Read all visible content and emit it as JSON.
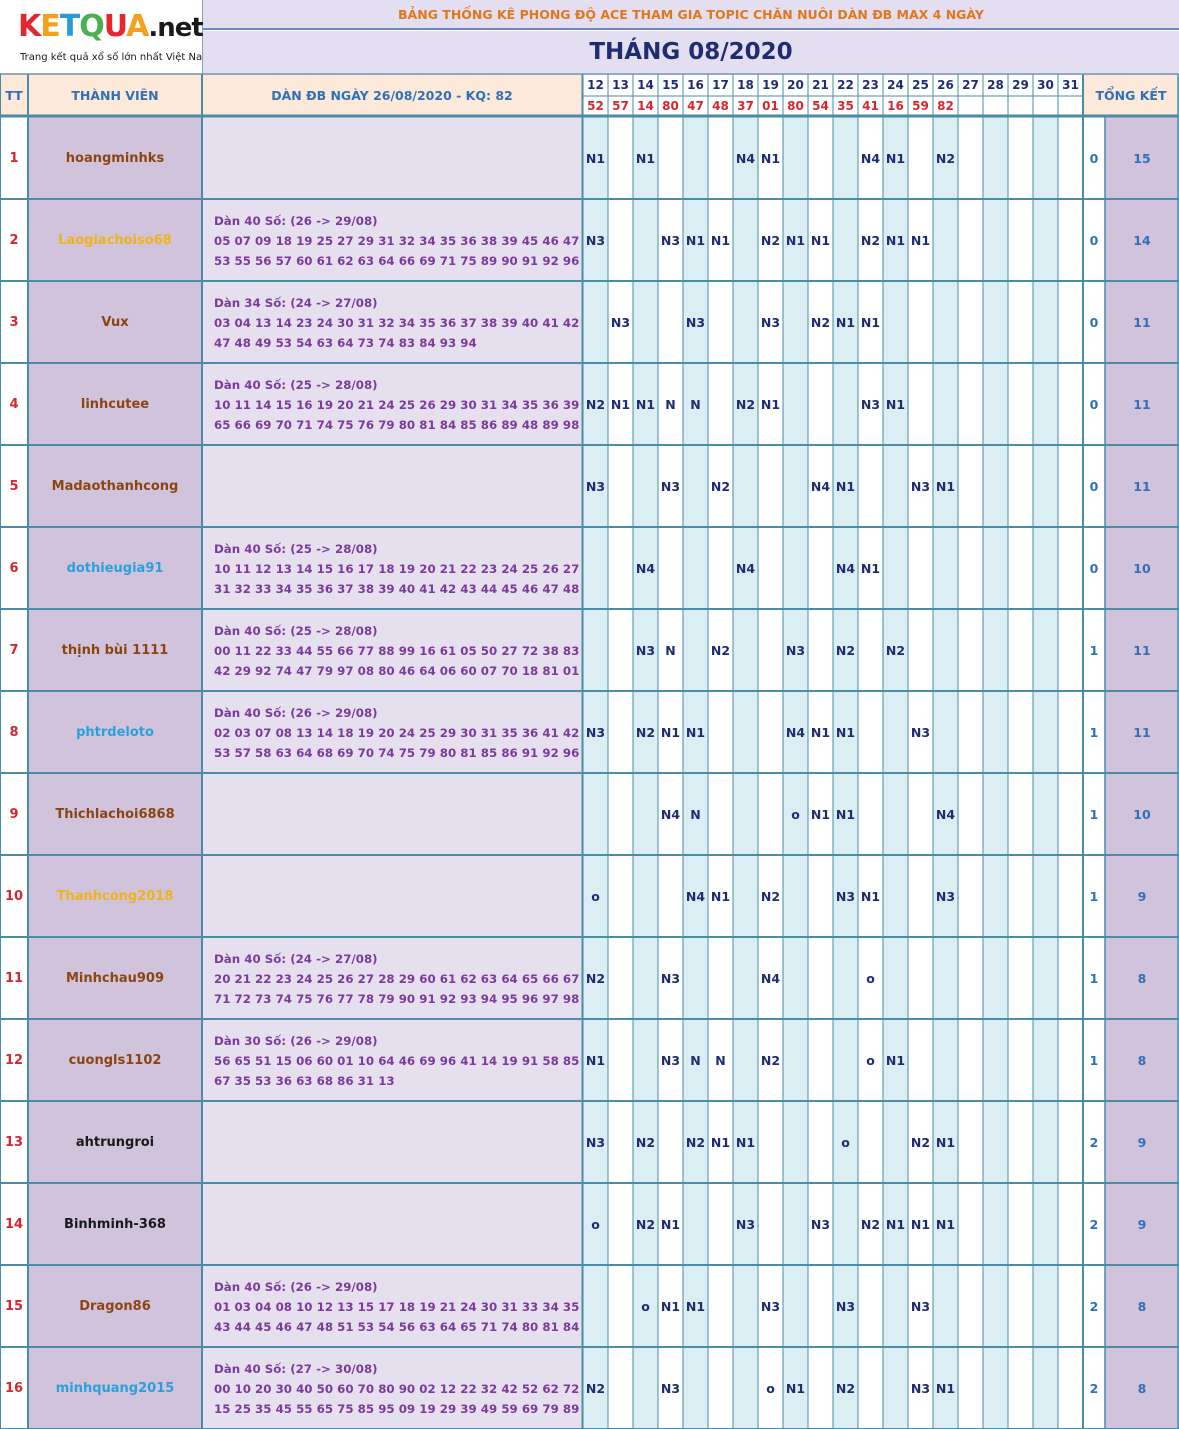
{
  "logo": {
    "letters": [
      "K",
      "E",
      "T",
      "Q",
      "U",
      "A"
    ],
    "letter_colors": [
      "#e3262f",
      "#f2a11c",
      "#2a9bd8",
      "#4caf50",
      "#e3262f",
      "#f2a11c"
    ],
    "suffix": ".net",
    "tagline": "Trang kết quả xổ số lớn nhất Việt Nam"
  },
  "header": {
    "title": "BẢNG THỐNG KÊ PHONG ĐỘ ACE THAM GIA TOPIC CHĂN NUÔI DÀN ĐB MAX 4 NGÀY",
    "month": "THÁNG 08/2020",
    "col_tt": "TT",
    "col_member": "THÀNH VIÊN",
    "col_dan": "DÀN ĐB NGÀY 26/08/2020 - KQ: 82",
    "col_total": "TỔNG KẾT"
  },
  "days": [
    "12",
    "13",
    "14",
    "15",
    "16",
    "17",
    "18",
    "19",
    "20",
    "21",
    "22",
    "23",
    "24",
    "25",
    "26",
    "27",
    "28",
    "29",
    "30",
    "31"
  ],
  "results": [
    "52",
    "57",
    "14",
    "80",
    "47",
    "48",
    "37",
    "01",
    "80",
    "54",
    "35",
    "41",
    "16",
    "59",
    "82",
    "",
    "",
    "",
    "",
    ""
  ],
  "colors": {
    "brown": "#8b4513",
    "orange": "#f0b418",
    "blue": "#2aa0dc",
    "black": "#1a1a1a"
  },
  "rows": [
    {
      "tt": "1",
      "name": "hoangminhks",
      "color": "brown",
      "dan": [
        "",
        "",
        ""
      ],
      "cells": [
        "N1",
        "",
        "N1",
        "",
        "",
        "",
        "N4",
        "N1",
        "",
        "",
        "",
        "N4",
        "N1",
        "",
        "N2",
        "",
        "",
        "",
        "",
        ""
      ],
      "a": "0",
      "b": "15"
    },
    {
      "tt": "2",
      "name": "Laogiachoiso68",
      "color": "orange",
      "dan": [
        "Dàn 40 Số: (26 -> 29/08)",
        "05 07 09 18 19 25 27 29 31 32 34 35 36 38 39 45 46 47 50 51 52",
        "53 55 56 57 60 61 62 63 64 66 69 71 75 89 90 91 92 96 98"
      ],
      "cells": [
        "N3",
        "",
        "",
        "N3",
        "N1",
        "N1",
        "",
        "N2",
        "N1",
        "N1",
        "",
        "N2",
        "N1",
        "N1",
        "",
        "",
        "",
        "",
        "",
        ""
      ],
      "a": "0",
      "b": "14"
    },
    {
      "tt": "3",
      "name": "Vux",
      "color": "brown",
      "dan": [
        "Dàn 34 Số: (24 -> 27/08)",
        "03 04 13 14 23 24 30 31 32 34 35 36 37 38 39 40 41 42 43 45 46",
        "47 48 49 53 54 63 64 73 74 83 84 93 94"
      ],
      "cells": [
        "",
        "N3",
        "",
        "",
        "N3",
        "",
        "",
        "N3",
        "",
        "N2",
        "N1",
        "N1",
        "",
        "",
        "",
        "",
        "",
        "",
        "",
        ""
      ],
      "a": "0",
      "b": "11"
    },
    {
      "tt": "4",
      "name": "linhcutee",
      "color": "brown",
      "dan": [
        "Dàn 40 Số: (25 -> 28/08)",
        "10 11 14 15 16 19 20 21 24 25 26 29 30 31 34 35 36 39 60 61 64",
        "65 66 69 70 71 74 75 76 79 80 81 84 85 86 89 48 89 98 99"
      ],
      "cells": [
        "N2",
        "N1",
        "N1",
        "N",
        "N",
        "",
        "N2",
        "N1",
        "",
        "",
        "",
        "N3",
        "N1",
        "",
        "",
        "",
        "",
        "",
        "",
        ""
      ],
      "a": "0",
      "b": "11"
    },
    {
      "tt": "5",
      "name": "Madaothanhcong",
      "color": "brown",
      "dan": [
        "",
        "",
        ""
      ],
      "cells": [
        "N3",
        "",
        "",
        "N3",
        "",
        "N2",
        "",
        "",
        "",
        "N4",
        "N1",
        "",
        "",
        "N3",
        "N1",
        "",
        "",
        "",
        "",
        ""
      ],
      "a": "0",
      "b": "11"
    },
    {
      "tt": "6",
      "name": "dothieugia91",
      "color": "blue",
      "dan": [
        "Dàn 40 Số: (25 -> 28/08)",
        "10 11 12 13 14 15 16 17 18 19 20 21 22 23 24 25 26 27 28 29 30",
        "31 32 33 34 35 36 37 38 39 40 41 42 43 44 45 46 47 48 49"
      ],
      "cells": [
        "",
        "",
        "N4",
        "",
        "",
        "",
        "N4",
        "",
        "",
        "",
        "N4",
        "N1",
        "",
        "",
        "",
        "",
        "",
        "",
        "",
        ""
      ],
      "a": "0",
      "b": "10"
    },
    {
      "tt": "7",
      "name": "thịnh bùi 1111",
      "color": "brown",
      "dan": [
        "Dàn 40 Số: (25 -> 28/08)",
        "00 11 22 33 44 55 66 77 88 99 16 61 05 50 27 72 38 83 49 94 24",
        "42 29 92 74 47 79 97 08 80 46 64 06 60 07 70 18 81 01 10"
      ],
      "cells": [
        "",
        "",
        "N3",
        "N",
        "",
        "N2",
        "",
        "",
        "N3",
        "",
        "N2",
        "",
        "N2",
        "",
        "",
        "",
        "",
        "",
        "",
        ""
      ],
      "a": "1",
      "b": "11"
    },
    {
      "tt": "8",
      "name": "phtrdeloto",
      "color": "blue",
      "dan": [
        "Dàn 40 Số: (26 -> 29/08)",
        "02 03 07 08 13 14 18 19 20 24 25 29 30 31 35 36 41 42 46 47 52",
        "53 57 58 63 64 68 69 70 74 75 79 80 81 85 86 91 92 96 97"
      ],
      "cells": [
        "N3",
        "",
        "N2",
        "N1",
        "N1",
        "",
        "",
        "",
        "N4",
        "N1",
        "N1",
        "",
        "",
        "N3",
        "",
        "",
        "",
        "",
        "",
        ""
      ],
      "a": "1",
      "b": "11"
    },
    {
      "tt": "9",
      "name": "Thichlachoi6868",
      "color": "brown",
      "dan": [
        "",
        "",
        ""
      ],
      "cells": [
        "",
        "",
        "",
        "N4",
        "N",
        "",
        "",
        "",
        "o",
        "N1",
        "N1",
        "",
        "",
        "",
        "N4",
        "",
        "",
        "",
        "",
        ""
      ],
      "a": "1",
      "b": "10"
    },
    {
      "tt": "10",
      "name": "Thanhcong2018",
      "color": "orange",
      "dan": [
        "",
        "",
        ""
      ],
      "cells": [
        "o",
        "",
        "",
        "",
        "N4",
        "N1",
        "",
        "N2",
        "",
        "",
        "N3",
        "N1",
        "",
        "",
        "N3",
        "",
        "",
        "",
        "",
        ""
      ],
      "a": "1",
      "b": "9"
    },
    {
      "tt": "11",
      "name": "Minhchau909",
      "color": "brown",
      "dan": [
        "Dàn 40 Số: (24 -> 27/08)",
        "20 21 22 23 24 25 26 27 28 29 60 61 62 63 64 65 66 67 68 69 70",
        "71 72 73 74 75 76 77 78 79 90 91 92 93 94 95 96 97 98 99"
      ],
      "cells": [
        "N2",
        "",
        "",
        "N3",
        "",
        "",
        "",
        "N4",
        "",
        "",
        "",
        "o",
        "",
        "",
        "",
        "",
        "",
        "",
        "",
        ""
      ],
      "a": "1",
      "b": "8"
    },
    {
      "tt": "12",
      "name": "cuongls1102",
      "color": "brown",
      "dan": [
        "Dàn 30 Số: (26 -> 29/08)",
        "56 65 51 15 06 60 01 10 64 46 69 96 41 14 19 91 58 85 03 30 76",
        "67 35 53 36 63 68 86 31 13"
      ],
      "cells": [
        "N1",
        "",
        "",
        "N3",
        "N",
        "N",
        "",
        "N2",
        "",
        "",
        "",
        "o",
        "N1",
        "",
        "",
        "",
        "",
        "",
        "",
        ""
      ],
      "a": "1",
      "b": "8"
    },
    {
      "tt": "13",
      "name": "ahtrungroi",
      "color": "black",
      "dan": [
        "",
        "",
        ""
      ],
      "cells": [
        "N3",
        "",
        "N2",
        "",
        "N2",
        "N1",
        "N1",
        "",
        "",
        "",
        "o",
        "",
        "",
        "N2",
        "N1",
        "",
        "",
        "",
        "",
        ""
      ],
      "a": "2",
      "b": "9"
    },
    {
      "tt": "14",
      "name": "Binhminh-368",
      "color": "black",
      "dan": [
        "",
        "",
        ""
      ],
      "cells": [
        "o",
        "",
        "N2",
        "N1",
        "",
        "",
        "N3",
        "",
        "",
        "N3",
        "",
        "N2",
        "N1",
        "N1",
        "N1",
        "",
        "",
        "",
        "",
        ""
      ],
      "a": "2",
      "b": "9"
    },
    {
      "tt": "15",
      "name": "Dragon86",
      "color": "brown",
      "dan": [
        "Dàn 40 Số: (26 -> 29/08)",
        "01 03 04 08 10 12 13 15 17 18 19 21 24 30 31 33 34 35 36 40 42",
        "43 44 45 46 47 48 51 53 54 56 63 64 65 71 74 80 81 84 91"
      ],
      "cells": [
        "",
        "",
        "o",
        "N1",
        "N1",
        "",
        "",
        "N3",
        "",
        "",
        "N3",
        "",
        "",
        "N3",
        "",
        "",
        "",
        "",
        "",
        ""
      ],
      "a": "2",
      "b": "8"
    },
    {
      "tt": "16",
      "name": "minhquang2015",
      "color": "blue",
      "dan": [
        "Dàn 40 Số: (27 -> 30/08)",
        "00 10 20 30 40 50 60 70 80 90 02 12 22 32 42 52 62 72 82 92 05",
        "15 25 35 45 55 65 75 85 95 09 19 29 39 49 59 69 79 89 99"
      ],
      "cells": [
        "N2",
        "",
        "",
        "N3",
        "",
        "",
        "",
        "o",
        "N1",
        "",
        "N2",
        "",
        "",
        "N3",
        "N1",
        "",
        "",
        "",
        "",
        ""
      ],
      "a": "2",
      "b": "8"
    }
  ]
}
